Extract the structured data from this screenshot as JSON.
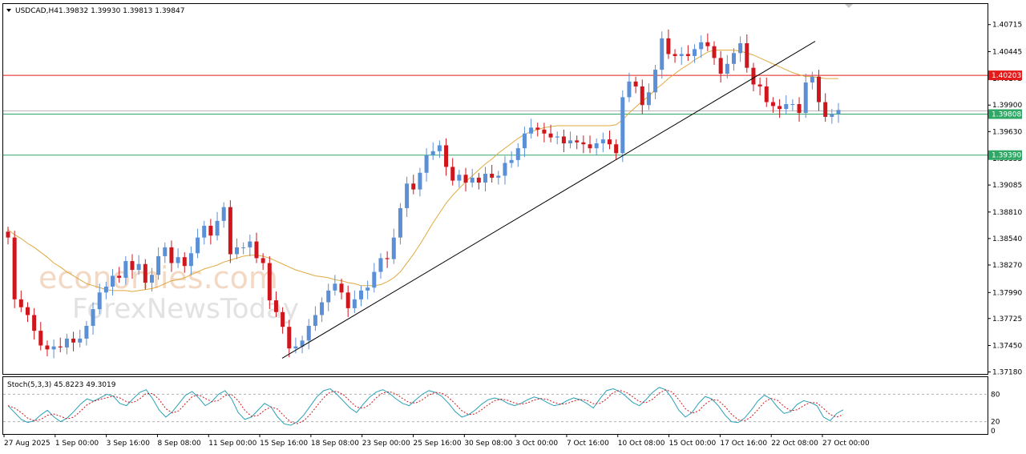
{
  "header": {
    "symbol": "USDCAD,H4",
    "ohlc": "1.39832 1.39930 1.39813 1.39847"
  },
  "watermark": {
    "line1": "economies.com",
    "line2": "ForexNewsToday"
  },
  "colors": {
    "bull": "#5b8fd6",
    "bear": "#d0161d",
    "ma": "#e0a93e",
    "resistance": "#e31b1b",
    "support": "#2fa866",
    "trendline": "#000000",
    "stoch_main": "#2aa0b7",
    "stoch_signal": "#d0161d",
    "frame": "#000000"
  },
  "levels": {
    "resistance": {
      "value": 1.40203,
      "label": "1.40203"
    },
    "current": {
      "value": 1.39808,
      "label": "1.39808"
    },
    "support": {
      "value": 1.3939,
      "label": "1.39390"
    }
  },
  "stochastic": {
    "label": "Stoch(5,3,3) 45.8223 49.3019",
    "levels": [
      {
        "value": 80,
        "label": "80"
      },
      {
        "value": 20,
        "label": "20"
      },
      {
        "value": 0,
        "label": "0"
      }
    ]
  },
  "chart_data": {
    "type": "line",
    "title": "USDCAD,H4",
    "x_ticks": [
      "27 Aug 2025",
      "1 Sep 00:00",
      "3 Sep 16:00",
      "8 Sep 08:00",
      "11 Sep 00:00",
      "15 Sep 16:00",
      "18 Sep 08:00",
      "23 Sep 00:00",
      "25 Sep 16:00",
      "30 Sep 08:00",
      "3 Oct 00:00",
      "7 Oct 16:00",
      "10 Oct 08:00",
      "15 Oct 00:00",
      "17 Oct 16:00",
      "22 Oct 08:00",
      "27 Oct 00:00"
    ],
    "y_ticks": [
      1.4072,
      1.40445,
      1.4017,
      1.399,
      1.3963,
      1.39355,
      1.39085,
      1.3881,
      1.3854,
      1.3827,
      1.3799,
      1.37725,
      1.3745,
      1.3718
    ],
    "y_tick_labels": [
      "1.40715",
      "1.40445",
      "1.40175",
      "1.39900",
      "1.39630",
      "1.39355",
      "1.39085",
      "1.38810",
      "1.38540",
      "1.38270",
      "1.37990",
      "1.37725",
      "1.37450",
      "1.37180"
    ],
    "ylim": [
      1.3716,
      1.4093
    ],
    "series": [
      {
        "values": [
          1.3855,
          1.3792,
          1.3784,
          1.3776,
          1.376,
          1.3745,
          1.3741,
          1.3744,
          1.3743,
          1.3752,
          1.3748,
          1.3752,
          1.3765,
          1.3782,
          1.3799,
          1.3805,
          1.3816,
          1.3814,
          1.3831,
          1.3822,
          1.3828,
          1.3809,
          1.3817,
          1.3836,
          1.3845,
          1.3829,
          1.3835,
          1.3826,
          1.3839,
          1.3855,
          1.3867,
          1.3857,
          1.3872,
          1.3886,
          1.3838,
          1.3845,
          1.3845,
          1.3851,
          1.3834,
          1.3829,
          1.3791,
          1.3779,
          1.3764,
          1.3742,
          1.3744,
          1.375,
          1.3765,
          1.3776,
          1.3789,
          1.3801,
          1.3808,
          1.3799,
          1.3783,
          1.3792,
          1.3801,
          1.3804,
          1.382,
          1.3834,
          1.3833,
          1.3855,
          1.3885,
          1.391,
          1.3904,
          1.3921,
          1.3939,
          1.3943,
          1.3949,
          1.3927,
          1.3913,
          1.3919,
          1.3911,
          1.3916,
          1.3911,
          1.392,
          1.3916,
          1.3918,
          1.3931,
          1.3934,
          1.3946,
          1.3961,
          1.3967,
          1.3965,
          1.3961,
          1.3957,
          1.3958,
          1.3951,
          1.3954,
          1.3952,
          1.395,
          1.3946,
          1.3951,
          1.3955,
          1.395,
          1.3941,
          1.3998,
          1.4014,
          1.4009,
          1.399,
          1.4003,
          1.4026,
          1.4058,
          1.4042,
          1.404,
          1.4042,
          1.404,
          1.4047,
          1.4054,
          1.405,
          1.4038,
          1.4022,
          1.4032,
          1.4043,
          1.4053,
          1.4028,
          1.4011,
          1.4009,
          1.3993,
          1.3989,
          1.3986,
          1.3991,
          1.3991,
          1.3982,
          1.4013,
          1.4019,
          1.3993,
          1.3978,
          1.3981,
          1.3985
        ],
        "ma": [
          1.3863,
          1.3858,
          1.3854,
          1.3849,
          1.3845,
          1.384,
          1.3835,
          1.3829,
          1.3825,
          1.382,
          1.3816,
          1.3812,
          1.3808,
          1.3806,
          1.3804,
          1.3802,
          1.3801,
          1.3801,
          1.3801,
          1.38,
          1.3801,
          1.3802,
          1.3803,
          1.3805,
          1.3808,
          1.3811,
          1.3812,
          1.3814,
          1.3817,
          1.382,
          1.3823,
          1.3825,
          1.3827,
          1.383,
          1.3832,
          1.3834,
          1.3836,
          1.3837,
          1.3837,
          1.3836,
          1.3834,
          1.3831,
          1.3828,
          1.3825,
          1.3822,
          1.382,
          1.3818,
          1.3816,
          1.3815,
          1.3814,
          1.3812,
          1.3811,
          1.3809,
          1.3808,
          1.3806,
          1.3806,
          1.3806,
          1.3807,
          1.381,
          1.3814,
          1.382,
          1.3829,
          1.3838,
          1.3848,
          1.3859,
          1.387,
          1.388,
          1.389,
          1.3898,
          1.3905,
          1.3912,
          1.3918,
          1.3924,
          1.393,
          1.3935,
          1.3941,
          1.3946,
          1.3951,
          1.3956,
          1.396,
          1.3963,
          1.3965,
          1.3967,
          1.3968,
          1.3969,
          1.3969,
          1.3969,
          1.3969,
          1.3969,
          1.3969,
          1.3969,
          1.3969,
          1.3969,
          1.397,
          1.3975,
          1.3982,
          1.3988,
          1.3994,
          1.3999,
          1.4006,
          1.4011,
          1.4017,
          1.4022,
          1.4027,
          1.4031,
          1.4036,
          1.404,
          1.4044,
          1.4046,
          1.4046,
          1.4046,
          1.4046,
          1.4045,
          1.4043,
          1.4041,
          1.4038,
          1.4035,
          1.4032,
          1.4029,
          1.4026,
          1.4023,
          1.4021,
          1.4019,
          1.4019,
          1.4018,
          1.4017,
          1.4017,
          1.4017
        ]
      }
    ],
    "trendline": {
      "start": 1.3732,
      "end": 1.4055
    },
    "stoch_values": [
      55,
      40,
      25,
      18,
      22,
      35,
      45,
      30,
      20,
      28,
      42,
      58,
      70,
      65,
      72,
      80,
      76,
      60,
      55,
      70,
      84,
      90,
      70,
      45,
      30,
      42,
      60,
      78,
      86,
      72,
      55,
      64,
      80,
      88,
      70,
      40,
      25,
      30,
      45,
      60,
      52,
      30,
      15,
      12,
      20,
      35,
      55,
      75,
      88,
      92,
      80,
      65,
      50,
      40,
      58,
      74,
      85,
      90,
      82,
      70,
      60,
      55,
      68,
      80,
      88,
      84,
      75,
      60,
      42,
      30,
      35,
      45,
      58,
      68,
      72,
      68,
      60,
      55,
      60,
      68,
      74,
      70,
      62,
      55,
      58,
      66,
      72,
      68,
      60,
      50,
      70,
      88,
      92,
      86,
      75,
      62,
      55,
      68,
      84,
      95,
      90,
      70,
      45,
      30,
      40,
      60,
      75,
      70,
      55,
      35,
      20,
      18,
      28,
      45,
      65,
      78,
      70,
      52,
      38,
      42,
      58,
      66,
      62,
      55,
      30,
      22,
      38,
      46
    ]
  }
}
